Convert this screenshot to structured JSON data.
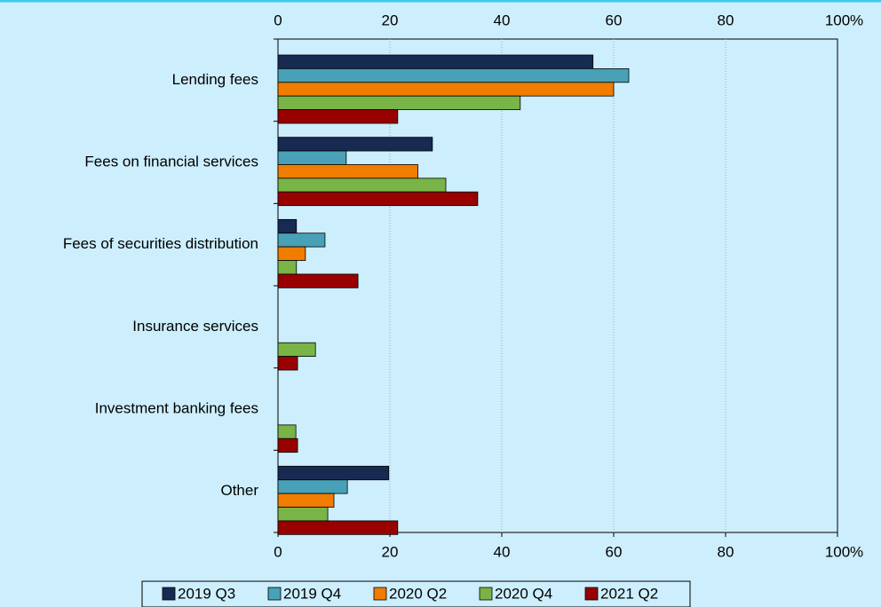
{
  "chart_data": {
    "type": "hbar",
    "xlabel": "%",
    "categories": [
      "Lending fees",
      "Fees on financial services",
      "Fees of securities distribution",
      "Insurance services",
      "Investment banking fees",
      "Other"
    ],
    "series": [
      {
        "name": "2019 Q3",
        "color": "#172a52",
        "values": [
          56.3,
          27.6,
          3.3,
          0,
          0,
          19.8
        ]
      },
      {
        "name": "2019 Q4",
        "color": "#48a1b6",
        "values": [
          62.7,
          12.2,
          8.4,
          0,
          0,
          12.4
        ]
      },
      {
        "name": "2020 Q2",
        "color": "#f07c00",
        "values": [
          60,
          25,
          4.9,
          0,
          0,
          10
        ]
      },
      {
        "name": "2020 Q4",
        "color": "#79b446",
        "values": [
          43.3,
          30,
          3.3,
          6.7,
          3.2,
          8.9
        ]
      },
      {
        "name": "2021 Q2",
        "color": "#990000",
        "values": [
          21.4,
          35.7,
          14.3,
          3.5,
          3.5,
          21.4
        ]
      }
    ],
    "xlim": [
      0,
      100
    ],
    "xticks": [
      0,
      20,
      40,
      60,
      80,
      100
    ],
    "grid": true,
    "legend": "bottom"
  }
}
